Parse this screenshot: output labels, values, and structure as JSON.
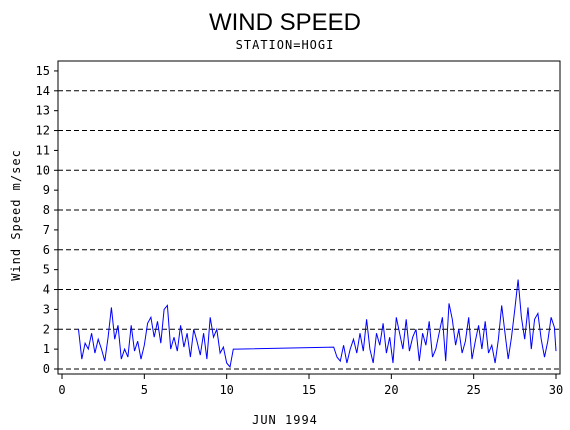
{
  "chart_data": {
    "type": "line",
    "title": "WIND SPEED",
    "subtitle": "STATION=HOGI",
    "xlabel": "JUN 1994",
    "ylabel": "Wind Speed m/sec",
    "xlim": [
      0,
      30
    ],
    "ylim": [
      0,
      15.5
    ],
    "xticks": [
      0,
      5,
      10,
      15,
      20,
      25,
      30
    ],
    "yticks": [
      0,
      1,
      2,
      3,
      4,
      5,
      6,
      7,
      8,
      9,
      10,
      11,
      12,
      13,
      14,
      15
    ],
    "reference_lines_y": [
      0,
      2,
      4,
      6,
      8,
      10,
      12,
      14
    ],
    "reference_line_style": "dashed",
    "series": [
      {
        "color": "#0000ff",
        "x": [
          1.0,
          1.2,
          1.4,
          1.6,
          1.8,
          2.0,
          2.2,
          2.4,
          2.6,
          2.8,
          3.0,
          3.2,
          3.4,
          3.6,
          3.8,
          4.0,
          4.2,
          4.4,
          4.6,
          4.8,
          5.0,
          5.2,
          5.4,
          5.6,
          5.8,
          6.0,
          6.2,
          6.4,
          6.6,
          6.8,
          7.0,
          7.2,
          7.4,
          7.6,
          7.8,
          8.0,
          8.2,
          8.4,
          8.6,
          8.8,
          9.0,
          9.2,
          9.4,
          9.6,
          9.8,
          10.0,
          10.2,
          10.4,
          10.6,
          16.5,
          16.7,
          16.9,
          17.1,
          17.3,
          17.5,
          17.7,
          17.9,
          18.1,
          18.3,
          18.5,
          18.7,
          18.9,
          19.1,
          19.3,
          19.5,
          19.7,
          19.9,
          20.1,
          20.3,
          20.5,
          20.7,
          20.9,
          21.1,
          21.3,
          21.5,
          21.7,
          21.9,
          22.1,
          22.3,
          22.5,
          22.7,
          22.9,
          23.1,
          23.3,
          23.5,
          23.7,
          23.9,
          24.1,
          24.3,
          24.5,
          24.7,
          24.9,
          25.1,
          25.3,
          25.5,
          25.7,
          25.9,
          26.1,
          26.3,
          26.5,
          26.7,
          26.9,
          27.1,
          27.3,
          27.5,
          27.7,
          27.9,
          28.1,
          28.3,
          28.5,
          28.7,
          28.9,
          29.1,
          29.3,
          29.5,
          29.7,
          29.9,
          30.0
        ],
        "y": [
          2.0,
          0.5,
          1.3,
          1.0,
          1.8,
          0.8,
          1.5,
          1.0,
          0.4,
          1.6,
          3.1,
          1.5,
          2.2,
          0.5,
          1.0,
          0.6,
          2.2,
          0.9,
          1.4,
          0.5,
          1.2,
          2.3,
          2.6,
          1.6,
          2.4,
          1.3,
          3.0,
          3.2,
          1.0,
          1.6,
          0.9,
          2.2,
          1.1,
          1.8,
          0.6,
          2.0,
          1.4,
          0.7,
          1.8,
          0.5,
          2.6,
          1.6,
          2.0,
          0.8,
          1.1,
          0.3,
          0.1,
          1.0,
          1.0,
          1.1,
          0.6,
          0.4,
          1.2,
          0.3,
          1.0,
          1.5,
          0.8,
          1.8,
          0.9,
          2.5,
          1.0,
          0.3,
          1.8,
          1.2,
          2.3,
          0.8,
          1.6,
          0.3,
          2.6,
          1.8,
          1.0,
          2.5,
          0.9,
          1.6,
          2.0,
          0.4,
          1.8,
          1.2,
          2.4,
          0.6,
          1.0,
          1.8,
          2.6,
          0.4,
          3.3,
          2.5,
          1.2,
          2.0,
          0.8,
          1.4,
          2.6,
          0.5,
          1.4,
          2.2,
          1.0,
          2.4,
          0.8,
          1.2,
          0.3,
          1.5,
          3.2,
          1.8,
          0.5,
          1.6,
          3.0,
          4.5,
          2.6,
          1.5,
          3.1,
          1.0,
          2.5,
          2.8,
          1.5,
          0.6,
          1.4,
          2.6,
          2.1,
          0.9
        ]
      }
    ]
  }
}
